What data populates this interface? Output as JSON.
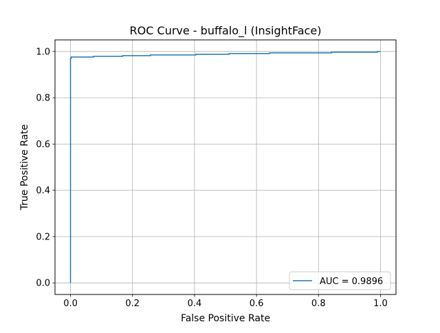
{
  "chart_data": {
    "type": "line",
    "title": "ROC Curve - buffalo_l (InsightFace)",
    "xlabel": "False Positive Rate",
    "ylabel": "True Positive Rate",
    "xlim": [
      -0.05,
      1.05
    ],
    "ylim": [
      -0.05,
      1.05
    ],
    "xticks": [
      0.0,
      0.2,
      0.4,
      0.6,
      0.8,
      1.0
    ],
    "xtick_labels": [
      "0.0",
      "0.2",
      "0.4",
      "0.6",
      "0.8",
      "1.0"
    ],
    "yticks": [
      0.0,
      0.2,
      0.4,
      0.6,
      0.8,
      1.0
    ],
    "ytick_labels": [
      "0.0",
      "0.2",
      "0.4",
      "0.6",
      "0.8",
      "1.0"
    ],
    "grid": true,
    "legend_position": "lower right",
    "series": [
      {
        "name": "AUC = 0.9896",
        "color": "#1f77b4",
        "x": [
          0.0,
          0.0,
          0.002,
          0.002,
          0.074,
          0.074,
          0.168,
          0.168,
          0.258,
          0.258,
          0.404,
          0.404,
          0.512,
          0.512,
          0.642,
          0.642,
          0.842,
          0.842,
          0.99,
          0.99,
          1.0
        ],
        "y": [
          0.0,
          0.97,
          0.97,
          0.976,
          0.976,
          0.979,
          0.979,
          0.982,
          0.982,
          0.985,
          0.985,
          0.988,
          0.988,
          0.991,
          0.991,
          0.994,
          0.994,
          0.997,
          0.997,
          1.0,
          1.0
        ]
      }
    ]
  }
}
